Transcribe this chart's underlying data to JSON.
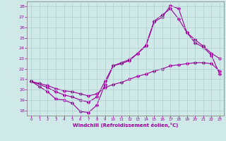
{
  "xlabel": "Windchill (Refroidissement éolien,°C)",
  "bg_color": "#cfe9e9",
  "grid_color": "#b0d0d0",
  "line_color": "#990099",
  "spine_color": "#888888",
  "ylim": [
    17.5,
    28.5
  ],
  "xlim": [
    -0.5,
    23.5
  ],
  "yticks": [
    18,
    19,
    20,
    21,
    22,
    23,
    24,
    25,
    26,
    27,
    28
  ],
  "xticks": [
    0,
    1,
    2,
    3,
    4,
    5,
    6,
    7,
    8,
    9,
    10,
    11,
    12,
    13,
    14,
    15,
    16,
    17,
    18,
    19,
    20,
    21,
    22,
    23
  ],
  "line1_x": [
    0,
    1,
    2,
    3,
    4,
    5,
    6,
    7,
    8,
    9,
    10,
    11,
    12,
    13,
    14,
    15,
    16,
    17,
    18,
    19,
    20,
    21,
    22,
    23
  ],
  "line1_y": [
    20.8,
    20.3,
    19.8,
    19.1,
    19.0,
    18.7,
    17.9,
    17.8,
    18.5,
    20.5,
    22.3,
    22.5,
    22.8,
    23.5,
    24.2,
    26.5,
    27.0,
    28.1,
    27.8,
    25.5,
    24.5,
    24.1,
    23.3,
    21.5
  ],
  "line2_x": [
    0,
    2,
    3,
    4,
    5,
    6,
    7,
    8,
    9,
    10,
    11,
    12,
    13,
    14,
    15,
    16,
    17,
    18,
    19,
    20,
    21,
    22,
    23
  ],
  "line2_y": [
    20.8,
    20.2,
    19.8,
    19.5,
    19.3,
    19.0,
    18.8,
    19.3,
    20.8,
    22.3,
    22.6,
    22.9,
    23.5,
    24.3,
    26.6,
    27.2,
    27.8,
    26.8,
    25.5,
    24.8,
    24.2,
    23.5,
    23.0
  ],
  "line3_x": [
    0,
    1,
    2,
    3,
    4,
    5,
    6,
    7,
    8,
    9,
    10,
    11,
    12,
    13,
    14,
    15,
    16,
    17,
    18,
    19,
    20,
    21,
    22,
    23
  ],
  "line3_y": [
    20.8,
    20.6,
    20.4,
    20.1,
    19.9,
    19.8,
    19.6,
    19.4,
    19.6,
    20.2,
    20.5,
    20.7,
    21.0,
    21.3,
    21.5,
    21.8,
    22.0,
    22.3,
    22.4,
    22.5,
    22.6,
    22.6,
    22.5,
    21.8
  ]
}
